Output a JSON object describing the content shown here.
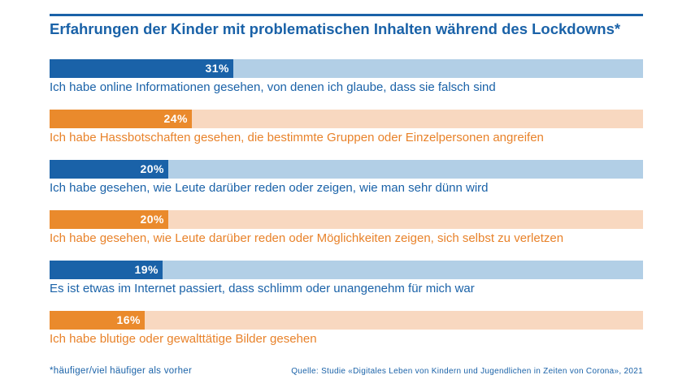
{
  "chart_data": {
    "type": "bar",
    "orientation": "horizontal",
    "title": "Erfahrungen der Kinder mit problematischen Inhalten während des Lockdowns*",
    "xlim": [
      0,
      100
    ],
    "unit": "%",
    "bars": [
      {
        "label": "Ich habe online Informationen gesehen, von denen ich glaube, dass sie falsch sind",
        "value": 31,
        "value_label": "31%",
        "color": "#1a62a8",
        "track_color": "#b2cfe6",
        "label_color": "#1a62a8"
      },
      {
        "label": "Ich habe Hassbotschaften gesehen, die bestimmte Gruppen oder Einzelpersonen angreifen",
        "value": 24,
        "value_label": "24%",
        "color": "#ea8a2c",
        "track_color": "#f8d8c0",
        "label_color": "#e8822a"
      },
      {
        "label": "Ich habe gesehen, wie Leute darüber reden oder zeigen, wie man sehr dünn wird",
        "value": 20,
        "value_label": "20%",
        "color": "#1a62a8",
        "track_color": "#b2cfe6",
        "label_color": "#1a62a8"
      },
      {
        "label": "Ich habe gesehen, wie Leute darüber reden oder Möglichkeiten zeigen, sich selbst zu verletzen",
        "value": 20,
        "value_label": "20%",
        "color": "#ea8a2c",
        "track_color": "#f8d8c0",
        "label_color": "#e8822a"
      },
      {
        "label": "Es ist etwas im Internet passiert, dass schlimm oder unangenehm für mich war",
        "value": 19,
        "value_label": "19%",
        "color": "#1a62a8",
        "track_color": "#b2cfe6",
        "label_color": "#1a62a8"
      },
      {
        "label": "Ich habe blutige oder gewalttätige Bilder gesehen",
        "value": 16,
        "value_label": "16%",
        "color": "#ea8a2c",
        "track_color": "#f8d8c0",
        "label_color": "#e8822a"
      }
    ]
  },
  "footnote": "*häufiger/viel häufiger als vorher",
  "source": "Quelle: Studie «Digitales Leben von Kindern und Jugendlichen in Zeiten von Corona», 2021"
}
